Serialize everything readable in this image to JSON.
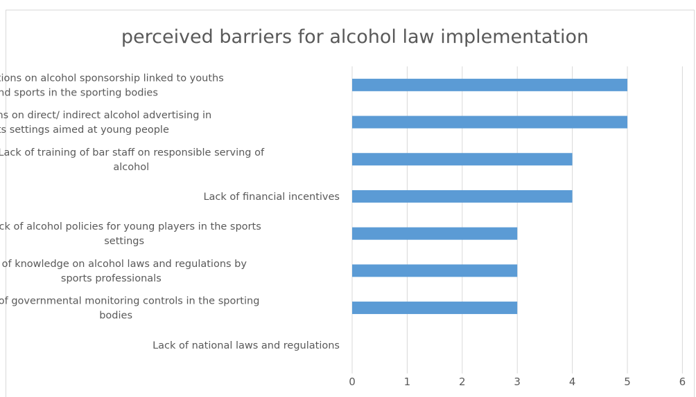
{
  "chart_data": {
    "type": "bar",
    "orientation": "horizontal",
    "title": "perceived barriers for alcohol law implementation",
    "xlabel": "",
    "ylabel": "",
    "xlim": [
      0,
      6
    ],
    "x_ticks": [
      "0",
      "1",
      "2",
      "3",
      "4",
      "5",
      "6"
    ],
    "grid": true,
    "legend": "none",
    "bar_color": "#5b9bd5",
    "categories": [
      [
        "Lack of regulations on alcohol sponsorship linked to youths",
        "and sports in the sporting bodies"
      ],
      [
        "Lack of regulations on direct/ indirect alcohol advertising in",
        "the sports settings aimed at young people"
      ],
      [
        "Lack of training of bar staff on responsible serving of",
        "alcohol"
      ],
      [
        "Lack of financial incentives"
      ],
      [
        "Lack of alcohol policies for young players in the sports",
        "settings"
      ],
      [
        "Lack of knowledge on alcohol laws and regulations by",
        "sports professionals"
      ],
      [
        "Lack of governmental monitoring controls in the sporting",
        "bodies"
      ],
      [
        "Lack of national laws and regulations"
      ]
    ],
    "values": [
      5,
      5,
      4,
      4,
      3,
      3,
      3,
      0
    ]
  }
}
